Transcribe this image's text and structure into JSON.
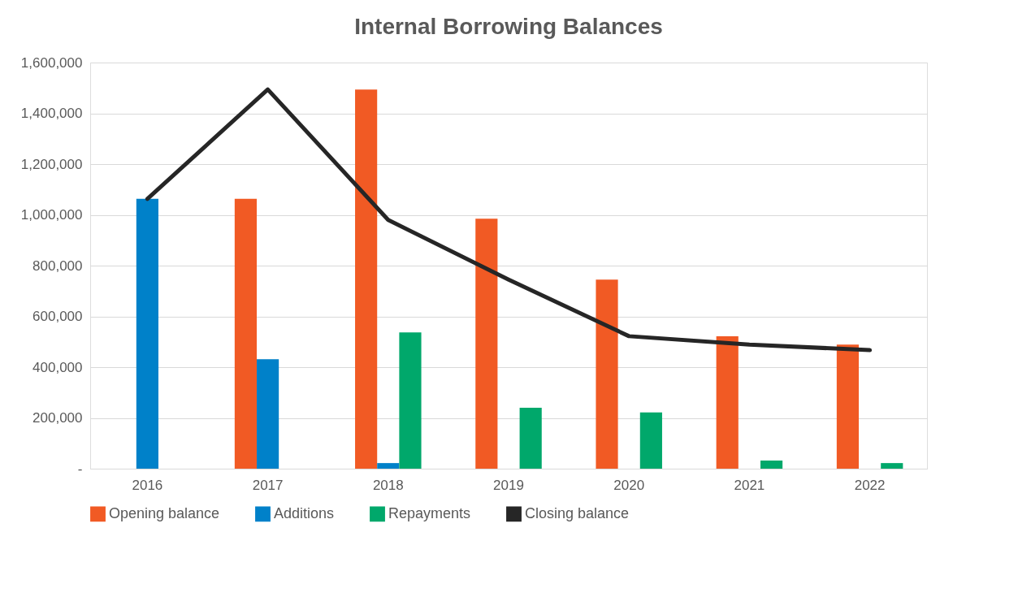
{
  "chart_data": {
    "type": "bar",
    "title": "Internal Borrowing Balances",
    "categories": [
      "2016",
      "2017",
      "2018",
      "2019",
      "2020",
      "2021",
      "2022"
    ],
    "series": [
      {
        "name": "Opening balance",
        "color": "#f15a24",
        "values": [
          null,
          1063000,
          1494000,
          985000,
          745000,
          522000,
          489000
        ]
      },
      {
        "name": "Additions",
        "color": "#0081c9",
        "values": [
          1063000,
          431000,
          22000,
          null,
          null,
          null,
          null
        ]
      },
      {
        "name": "Repayments",
        "color": "#00a86b",
        "values": [
          null,
          null,
          537000,
          240000,
          222000,
          32000,
          22000
        ]
      },
      {
        "name": "Closing balance",
        "type": "line",
        "color": "#262626",
        "values": [
          1063000,
          1494000,
          980000,
          745000,
          522000,
          489000,
          467000
        ]
      }
    ],
    "ylim": [
      0,
      1600000
    ],
    "yticks": [
      {
        "value": 0,
        "label": "-"
      },
      {
        "value": 200000,
        "label": "200,000"
      },
      {
        "value": 400000,
        "label": "400,000"
      },
      {
        "value": 600000,
        "label": "600,000"
      },
      {
        "value": 800000,
        "label": "800,000"
      },
      {
        "value": 1000000,
        "label": "1,000,000"
      },
      {
        "value": 1200000,
        "label": "1,200,000"
      },
      {
        "value": 1400000,
        "label": "1,400,000"
      },
      {
        "value": 1600000,
        "label": "1,600,000"
      }
    ],
    "grid": "y",
    "legend": "bottom"
  }
}
